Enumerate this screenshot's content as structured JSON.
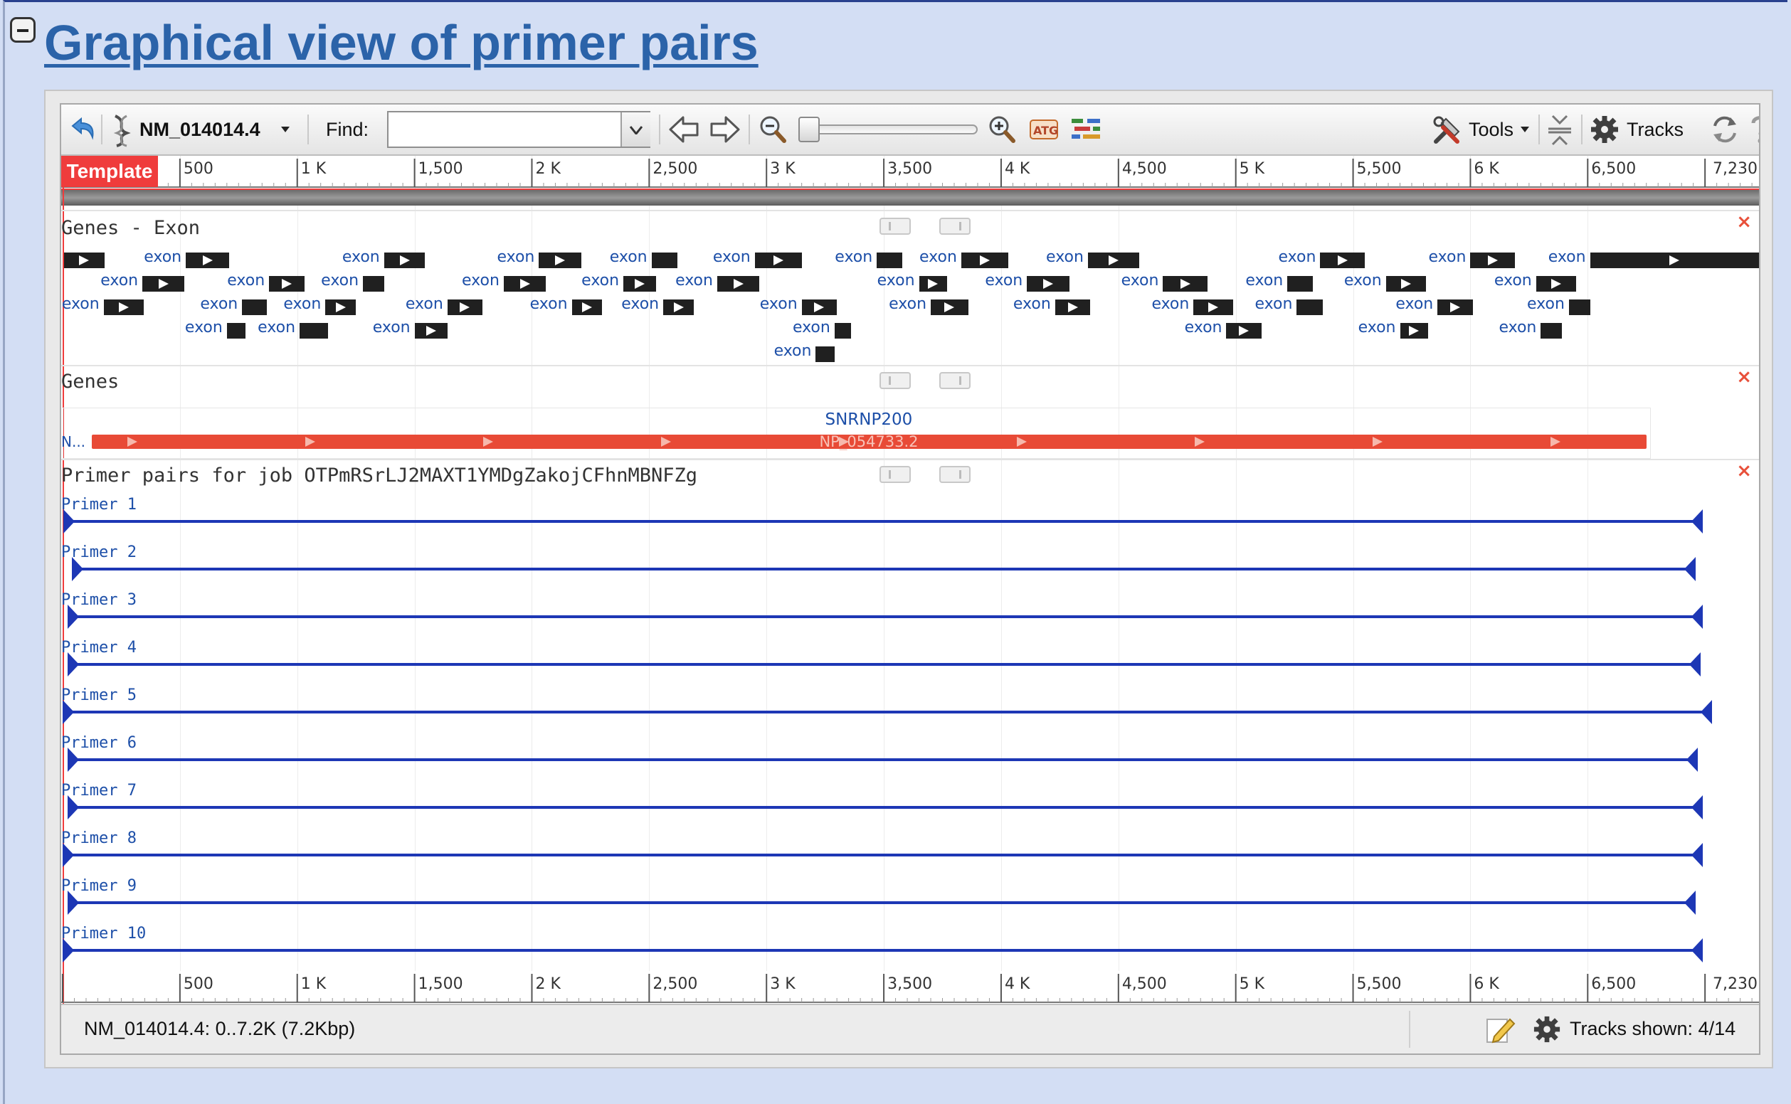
{
  "section": {
    "title": "Graphical view of primer pairs"
  },
  "toolbar": {
    "sequence_label": "NM_014014.4",
    "find_label": "Find:",
    "find_value": "",
    "tools_label": "Tools",
    "tracks_label": "Tracks"
  },
  "ruler": {
    "template_label": "Template",
    "ticks": [
      {
        "bp": 500,
        "label": "500"
      },
      {
        "bp": 1000,
        "label": "1 K"
      },
      {
        "bp": 1500,
        "label": "1,500"
      },
      {
        "bp": 2000,
        "label": "2 K"
      },
      {
        "bp": 2500,
        "label": "2,500"
      },
      {
        "bp": 3000,
        "label": "3 K"
      },
      {
        "bp": 3500,
        "label": "3,500"
      },
      {
        "bp": 4000,
        "label": "4 K"
      },
      {
        "bp": 4500,
        "label": "4,500"
      },
      {
        "bp": 5000,
        "label": "5 K"
      },
      {
        "bp": 5500,
        "label": "5,500"
      },
      {
        "bp": 6000,
        "label": "6 K"
      },
      {
        "bp": 6500,
        "label": "6,500"
      }
    ],
    "end_label": "7,230",
    "length_bp": 7230
  },
  "tracks": {
    "exon_title": "Genes - Exon",
    "genes_title": "Genes",
    "primer_title": "Primer pairs for job OTPmRSrLJ2MAXT1YMDgZakojCFhnMBNFZg",
    "close_glyph": "×"
  },
  "exon_label": "exon",
  "exons": [
    {
      "row": 0,
      "start": 5,
      "end": 180,
      "fwd": true,
      "label": false
    },
    {
      "row": 0,
      "start": 525,
      "end": 710,
      "fwd": true,
      "label": true
    },
    {
      "row": 0,
      "start": 1370,
      "end": 1545,
      "fwd": true,
      "label": true
    },
    {
      "row": 0,
      "start": 2030,
      "end": 2210,
      "fwd": true,
      "label": true
    },
    {
      "row": 0,
      "start": 2510,
      "end": 2620,
      "fwd": false,
      "label": true
    },
    {
      "row": 0,
      "start": 2950,
      "end": 3150,
      "fwd": true,
      "label": true
    },
    {
      "row": 0,
      "start": 3470,
      "end": 3580,
      "fwd": false,
      "label": true
    },
    {
      "row": 0,
      "start": 3830,
      "end": 4030,
      "fwd": true,
      "label": true
    },
    {
      "row": 0,
      "start": 4370,
      "end": 4590,
      "fwd": true,
      "label": true
    },
    {
      "row": 0,
      "start": 5360,
      "end": 5550,
      "fwd": true,
      "label": true
    },
    {
      "row": 0,
      "start": 6000,
      "end": 6190,
      "fwd": true,
      "label": true
    },
    {
      "row": 0,
      "start": 6510,
      "end": 7230,
      "fwd": true,
      "label": true
    },
    {
      "row": 1,
      "start": 340,
      "end": 520,
      "fwd": true,
      "label": true
    },
    {
      "row": 1,
      "start": 880,
      "end": 1030,
      "fwd": true,
      "label": true
    },
    {
      "row": 1,
      "start": 1280,
      "end": 1370,
      "fwd": false,
      "label": true
    },
    {
      "row": 1,
      "start": 1880,
      "end": 2060,
      "fwd": true,
      "label": true
    },
    {
      "row": 1,
      "start": 2390,
      "end": 2530,
      "fwd": true,
      "label": true
    },
    {
      "row": 1,
      "start": 2790,
      "end": 2970,
      "fwd": true,
      "label": true
    },
    {
      "row": 1,
      "start": 3650,
      "end": 3770,
      "fwd": true,
      "label": true
    },
    {
      "row": 1,
      "start": 4110,
      "end": 4290,
      "fwd": true,
      "label": true
    },
    {
      "row": 1,
      "start": 4690,
      "end": 4880,
      "fwd": true,
      "label": true
    },
    {
      "row": 1,
      "start": 5220,
      "end": 5330,
      "fwd": false,
      "label": true
    },
    {
      "row": 1,
      "start": 5640,
      "end": 5810,
      "fwd": true,
      "label": true
    },
    {
      "row": 1,
      "start": 6280,
      "end": 6450,
      "fwd": true,
      "label": true
    },
    {
      "row": 2,
      "start": 175,
      "end": 345,
      "fwd": true,
      "label": true
    },
    {
      "row": 2,
      "start": 765,
      "end": 870,
      "fwd": false,
      "label": true
    },
    {
      "row": 2,
      "start": 1120,
      "end": 1250,
      "fwd": true,
      "label": true
    },
    {
      "row": 2,
      "start": 1640,
      "end": 1790,
      "fwd": true,
      "label": true
    },
    {
      "row": 2,
      "start": 2170,
      "end": 2300,
      "fwd": true,
      "label": true
    },
    {
      "row": 2,
      "start": 2560,
      "end": 2690,
      "fwd": true,
      "label": true
    },
    {
      "row": 2,
      "start": 3150,
      "end": 3300,
      "fwd": true,
      "label": true
    },
    {
      "row": 2,
      "start": 3700,
      "end": 3860,
      "fwd": true,
      "label": true
    },
    {
      "row": 2,
      "start": 4230,
      "end": 4380,
      "fwd": true,
      "label": true
    },
    {
      "row": 2,
      "start": 4820,
      "end": 4990,
      "fwd": true,
      "label": true
    },
    {
      "row": 2,
      "start": 5260,
      "end": 5370,
      "fwd": false,
      "label": true
    },
    {
      "row": 2,
      "start": 5860,
      "end": 6010,
      "fwd": true,
      "label": true
    },
    {
      "row": 2,
      "start": 6420,
      "end": 6510,
      "fwd": false,
      "label": true
    },
    {
      "row": 3,
      "start": 700,
      "end": 780,
      "fwd": false,
      "label": true
    },
    {
      "row": 3,
      "start": 1010,
      "end": 1130,
      "fwd": false,
      "label": true
    },
    {
      "row": 3,
      "start": 1500,
      "end": 1640,
      "fwd": true,
      "label": true
    },
    {
      "row": 3,
      "start": 3290,
      "end": 3360,
      "fwd": false,
      "label": true
    },
    {
      "row": 3,
      "start": 4960,
      "end": 5110,
      "fwd": true,
      "label": true
    },
    {
      "row": 3,
      "start": 5700,
      "end": 5820,
      "fwd": true,
      "label": true
    },
    {
      "row": 3,
      "start": 6300,
      "end": 6390,
      "fwd": false,
      "label": true
    },
    {
      "row": 4,
      "start": 3210,
      "end": 3290,
      "fwd": false,
      "label": true
    }
  ],
  "gene": {
    "name": "SNRNP200",
    "protein": "NP_054733.2",
    "prefix": "N...",
    "start": 125,
    "end": 6750,
    "box_end": 6770
  },
  "primers": [
    {
      "label": "Primer 1",
      "start": 2,
      "end": 6990
    },
    {
      "label": "Primer 2",
      "start": 40,
      "end": 6960
    },
    {
      "label": "Primer 3",
      "start": 20,
      "end": 6990
    },
    {
      "label": "Primer 4",
      "start": 20,
      "end": 6980
    },
    {
      "label": "Primer 5",
      "start": 0,
      "end": 7030
    },
    {
      "label": "Primer 6",
      "start": 20,
      "end": 6970
    },
    {
      "label": "Primer 7",
      "start": 20,
      "end": 6990
    },
    {
      "label": "Primer 8",
      "start": 0,
      "end": 6990
    },
    {
      "label": "Primer 9",
      "start": 20,
      "end": 6960
    },
    {
      "label": "Primer 10",
      "start": 0,
      "end": 6990
    }
  ],
  "status": {
    "location": "NM_014014.4: 0..7.2K (7.2Kbp)",
    "tracks_shown": "Tracks shown: 4/14"
  },
  "colors": {
    "accent": "#2b63a9",
    "gene": "#e84a36",
    "primer": "#1d37b5",
    "exon": "#202020"
  }
}
